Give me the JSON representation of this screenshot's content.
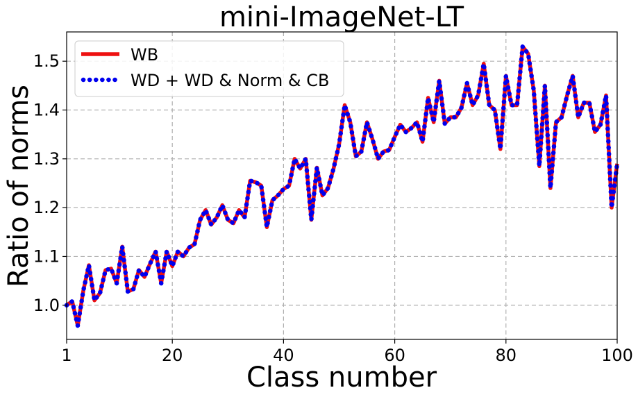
{
  "chart_data": {
    "type": "line",
    "title": "mini-ImageNet-LT",
    "xlabel": "Class number",
    "ylabel": "Ratio of norms",
    "xlim": [
      1,
      100
    ],
    "ylim": [
      0.93,
      1.56
    ],
    "xticks": [
      1,
      20,
      40,
      60,
      80,
      100
    ],
    "xtick_labels": [
      "1",
      "20",
      "40",
      "60",
      "80",
      "100"
    ],
    "yticks": [
      1.0,
      1.1,
      1.2,
      1.3,
      1.4,
      1.5
    ],
    "ytick_labels": [
      "1.0",
      "1.1",
      "1.2",
      "1.3",
      "1.4",
      "1.5"
    ],
    "grid": true,
    "legend_position": "top-left",
    "x": [
      1,
      2,
      3,
      4,
      5,
      6,
      7,
      8,
      9,
      10,
      11,
      12,
      13,
      14,
      15,
      16,
      17,
      18,
      19,
      20,
      21,
      22,
      23,
      24,
      25,
      26,
      27,
      28,
      29,
      30,
      31,
      32,
      33,
      34,
      35,
      36,
      37,
      38,
      39,
      40,
      41,
      42,
      43,
      44,
      45,
      46,
      47,
      48,
      49,
      50,
      51,
      52,
      53,
      54,
      55,
      56,
      57,
      58,
      59,
      60,
      61,
      62,
      63,
      64,
      65,
      66,
      67,
      68,
      69,
      70,
      71,
      72,
      73,
      74,
      75,
      76,
      77,
      78,
      79,
      80,
      81,
      82,
      83,
      84,
      85,
      86,
      87,
      88,
      89,
      90,
      91,
      92,
      93,
      94,
      95,
      96,
      97,
      98,
      99,
      100
    ],
    "series": [
      {
        "name": "WB",
        "color": "#ee1111",
        "style": "solid",
        "values": [
          1.0,
          1.008,
          0.958,
          1.03,
          1.082,
          1.01,
          1.025,
          1.072,
          1.075,
          1.045,
          1.12,
          1.028,
          1.033,
          1.072,
          1.058,
          1.085,
          1.11,
          1.045,
          1.11,
          1.08,
          1.11,
          1.1,
          1.118,
          1.125,
          1.175,
          1.195,
          1.165,
          1.18,
          1.205,
          1.175,
          1.168,
          1.195,
          1.18,
          1.255,
          1.252,
          1.245,
          1.16,
          1.215,
          1.225,
          1.238,
          1.245,
          1.3,
          1.28,
          1.3,
          1.175,
          1.282,
          1.225,
          1.24,
          1.28,
          1.33,
          1.41,
          1.375,
          1.305,
          1.315,
          1.375,
          1.34,
          1.3,
          1.315,
          1.318,
          1.345,
          1.37,
          1.355,
          1.363,
          1.375,
          1.335,
          1.425,
          1.375,
          1.46,
          1.372,
          1.385,
          1.385,
          1.405,
          1.455,
          1.41,
          1.43,
          1.495,
          1.41,
          1.4,
          1.32,
          1.47,
          1.41,
          1.41,
          1.53,
          1.515,
          1.44,
          1.285,
          1.45,
          1.24,
          1.375,
          1.385,
          1.43,
          1.47,
          1.385,
          1.415,
          1.415,
          1.355,
          1.37,
          1.43,
          1.2,
          1.29
        ]
      },
      {
        "name": "WD + WD & Norm & CB",
        "color": "#0000ee",
        "style": "dotted",
        "values": [
          1.0,
          1.008,
          0.958,
          1.03,
          1.082,
          1.01,
          1.025,
          1.072,
          1.075,
          1.045,
          1.12,
          1.028,
          1.033,
          1.072,
          1.058,
          1.085,
          1.11,
          1.045,
          1.11,
          1.08,
          1.11,
          1.1,
          1.118,
          1.125,
          1.175,
          1.195,
          1.165,
          1.18,
          1.205,
          1.175,
          1.168,
          1.195,
          1.18,
          1.255,
          1.252,
          1.245,
          1.16,
          1.215,
          1.225,
          1.238,
          1.245,
          1.3,
          1.28,
          1.3,
          1.175,
          1.282,
          1.225,
          1.24,
          1.28,
          1.33,
          1.41,
          1.375,
          1.305,
          1.315,
          1.375,
          1.34,
          1.3,
          1.315,
          1.318,
          1.345,
          1.37,
          1.355,
          1.363,
          1.375,
          1.335,
          1.425,
          1.375,
          1.46,
          1.372,
          1.385,
          1.385,
          1.405,
          1.455,
          1.41,
          1.43,
          1.495,
          1.41,
          1.4,
          1.32,
          1.47,
          1.41,
          1.41,
          1.53,
          1.515,
          1.44,
          1.285,
          1.45,
          1.24,
          1.375,
          1.385,
          1.43,
          1.47,
          1.385,
          1.415,
          1.415,
          1.355,
          1.37,
          1.43,
          1.2,
          1.29
        ]
      }
    ]
  }
}
